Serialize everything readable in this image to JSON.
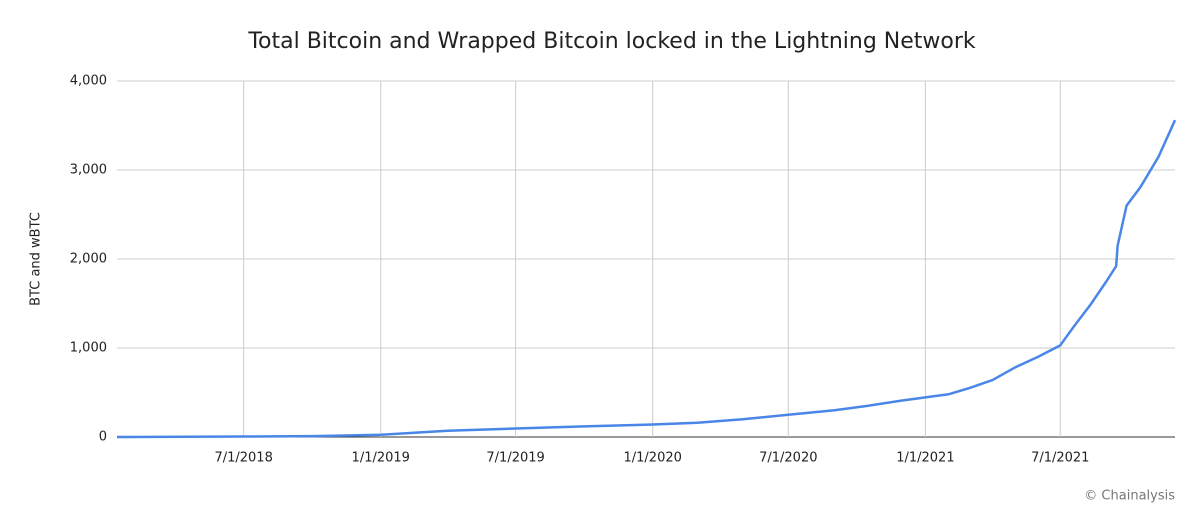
{
  "chart_data": {
    "type": "line",
    "title": "Total Bitcoin and Wrapped Bitcoin locked in the Lightning Network",
    "y_label": "BTC and wBTC",
    "source": "© Chainalysis",
    "grid": true,
    "x": [
      "1/12/2018",
      "7/1/2018",
      "10/1/2018",
      "12/1/2018",
      "1/1/2019",
      "3/1/2019",
      "4/1/2019",
      "7/1/2019",
      "10/1/2019",
      "1/1/2020",
      "3/1/2020",
      "5/1/2020",
      "7/1/2020",
      "9/1/2020",
      "10/15/2020",
      "12/1/2020",
      "1/1/2021",
      "2/1/2021",
      "3/1/2021",
      "4/1/2021",
      "5/1/2021",
      "6/1/2021",
      "7/1/2021",
      "7/20/2021",
      "8/10/2021",
      "9/1/2021",
      "9/14/2021",
      "9/16/2021",
      "9/28/2021",
      "10/16/2021",
      "11/10/2021",
      "12/2/2021"
    ],
    "series": [
      {
        "name": "BTC and wBTC",
        "color": "#4a86e8",
        "values": [
          0,
          5,
          10,
          20,
          25,
          55,
          70,
          95,
          120,
          140,
          160,
          200,
          250,
          300,
          350,
          410,
          445,
          480,
          550,
          640,
          780,
          900,
          1030,
          1250,
          1480,
          1750,
          1920,
          2150,
          2600,
          2800,
          3150,
          3560
        ]
      }
    ],
    "xlim": [
      "1/12/2018",
      "12/2/2021"
    ],
    "xticks": [
      "7/1/2018",
      "1/1/2019",
      "7/1/2019",
      "1/1/2020",
      "7/1/2020",
      "1/1/2021",
      "7/1/2021"
    ],
    "ylim": [
      0,
      4000
    ],
    "yticks": [
      0,
      {
        "value": 1000,
        "label": "1,000"
      },
      {
        "value": 2000,
        "label": "2,000"
      },
      {
        "value": 3000,
        "label": "3,000"
      },
      {
        "value": 4000,
        "label": "4,000"
      }
    ]
  }
}
